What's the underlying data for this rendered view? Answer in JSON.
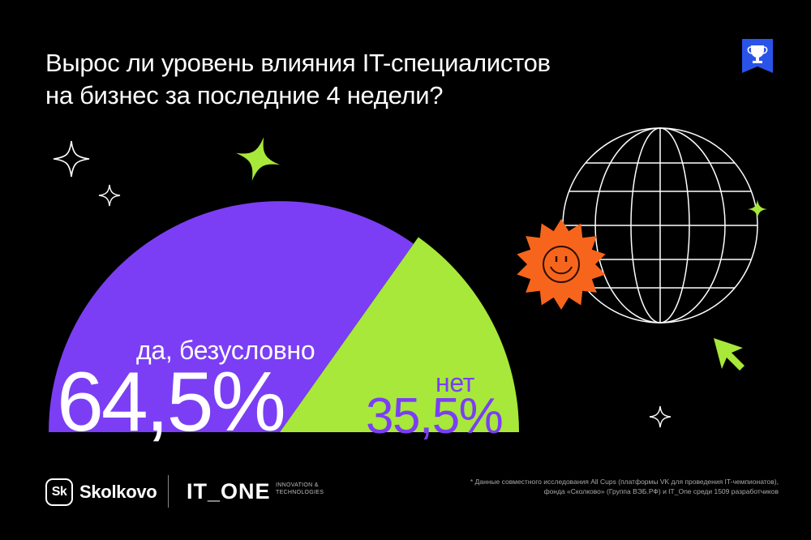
{
  "title": {
    "line1": "Вырос ли уровень влияния IT-специалистов",
    "line2": "на бизнес за последние 4 недели?"
  },
  "chart_data": {
    "type": "pie",
    "categories": [
      "да, безусловно",
      "нет"
    ],
    "values": [
      64.5,
      35.5
    ],
    "value_labels": [
      "64,5%",
      "35,5%"
    ],
    "colors": [
      "#7b3ef5",
      "#a7e83a"
    ],
    "title": "Вырос ли уровень влияния IT-специалистов на бизнес за последние 4 недели?"
  },
  "labels": {
    "yes_label": "да, безусловно",
    "yes_value": "64,5%",
    "no_label": "нет",
    "no_value": "35,5%"
  },
  "footer": {
    "sk_badge": "Sk",
    "sk_name": "Skolkovo",
    "itone": "IT_ONE",
    "itone_sub": "INNOVATION & TECHNOLOGIES",
    "footnote_line1": "* Данные совместного исследования All Cups (платформы VK для проведения IT-чемпионатов),",
    "footnote_line2": "фонда «Сколково» (Группа ВЭБ.РФ) и IT_One среди 1509 разработчиков"
  },
  "colors": {
    "background": "#000000",
    "purple": "#7b3ef5",
    "green": "#a7e83a",
    "orange": "#f7651c",
    "badge_blue": "#2a53e8"
  },
  "icons": [
    "trophy-badge-icon",
    "globe-icon",
    "smiley-sun-icon",
    "cursor-arrow-icon",
    "sparkle-icon"
  ]
}
